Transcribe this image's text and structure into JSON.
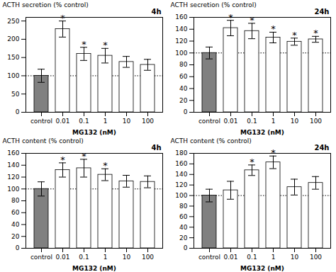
{
  "chart_data": [
    {
      "type": "bar",
      "panel_label": "4h",
      "ylabel": "ACTH secretion (% control)",
      "xlabel": "MG132 (nM)",
      "categories": [
        "control",
        "0.01",
        "0.1",
        "1",
        "10",
        "100"
      ],
      "values": [
        100,
        228,
        160,
        155,
        138,
        130
      ],
      "errors": [
        18,
        22,
        18,
        20,
        15,
        15
      ],
      "sig_labels": [
        null,
        "*",
        "*",
        "*",
        null,
        null
      ],
      "ylim": [
        0,
        260
      ],
      "yticks": [
        0,
        50,
        100,
        150,
        200,
        250
      ],
      "colors": [
        "#808080",
        "#ffffff",
        "#ffffff",
        "#ffffff",
        "#ffffff",
        "#ffffff"
      ],
      "edgecolor": "#000000",
      "error_color": "#000000",
      "reference_line": {
        "value": 100,
        "color": "#000000",
        "line_style": "dotted"
      }
    },
    {
      "type": "bar",
      "panel_label": "24h",
      "ylabel": "ACTH secretion (% control)",
      "xlabel": "MG132 (nM)",
      "categories": [
        "control",
        "0.01",
        "0.1",
        "1",
        "10",
        "100"
      ],
      "values": [
        100,
        142,
        137,
        126,
        119,
        123
      ],
      "errors": [
        10,
        13,
        13,
        9,
        6,
        5
      ],
      "sig_labels": [
        null,
        "*",
        "*",
        "*",
        "*",
        "*"
      ],
      "ylim": [
        0,
        160
      ],
      "yticks": [
        0,
        20,
        40,
        60,
        80,
        100,
        120,
        140,
        160
      ],
      "colors": [
        "#808080",
        "#ffffff",
        "#ffffff",
        "#ffffff",
        "#ffffff",
        "#ffffff"
      ],
      "edgecolor": "#000000",
      "error_color": "#000000",
      "reference_line": {
        "value": 100,
        "color": "#000000",
        "line_style": "dotted"
      }
    },
    {
      "type": "bar",
      "panel_label": "4h",
      "ylabel": "ACTH content (% control)",
      "xlabel": "MG132 (nM)",
      "categories": [
        "control",
        "0.01",
        "0.1",
        "1",
        "10",
        "100"
      ],
      "values": [
        100,
        132,
        135,
        124,
        113,
        112
      ],
      "errors": [
        12,
        12,
        15,
        10,
        10,
        10
      ],
      "sig_labels": [
        null,
        "*",
        "*",
        "*",
        null,
        null
      ],
      "ylim": [
        0,
        160
      ],
      "yticks": [
        0,
        20,
        40,
        60,
        80,
        100,
        120,
        140,
        160
      ],
      "colors": [
        "#808080",
        "#ffffff",
        "#ffffff",
        "#ffffff",
        "#ffffff",
        "#ffffff"
      ],
      "edgecolor": "#000000",
      "error_color": "#000000",
      "reference_line": {
        "value": 100,
        "color": "#000000",
        "line_style": "dotted"
      }
    },
    {
      "type": "bar",
      "panel_label": "24h",
      "ylabel": "ACTH content (% control)",
      "xlabel": "MG132 (nM)",
      "categories": [
        "control",
        "0.01",
        "0.1",
        "1",
        "10",
        "100"
      ],
      "values": [
        100,
        110,
        148,
        163,
        116,
        124
      ],
      "errors": [
        12,
        17,
        10,
        12,
        15,
        12
      ],
      "sig_labels": [
        null,
        null,
        "*",
        "*",
        null,
        null
      ],
      "ylim": [
        0,
        180
      ],
      "yticks": [
        0,
        20,
        40,
        60,
        80,
        100,
        120,
        140,
        160,
        180
      ],
      "colors": [
        "#808080",
        "#ffffff",
        "#ffffff",
        "#ffffff",
        "#ffffff",
        "#ffffff"
      ],
      "edgecolor": "#000000",
      "error_color": "#000000",
      "reference_line": {
        "value": 100,
        "color": "#000000",
        "line_style": "dotted"
      }
    }
  ]
}
